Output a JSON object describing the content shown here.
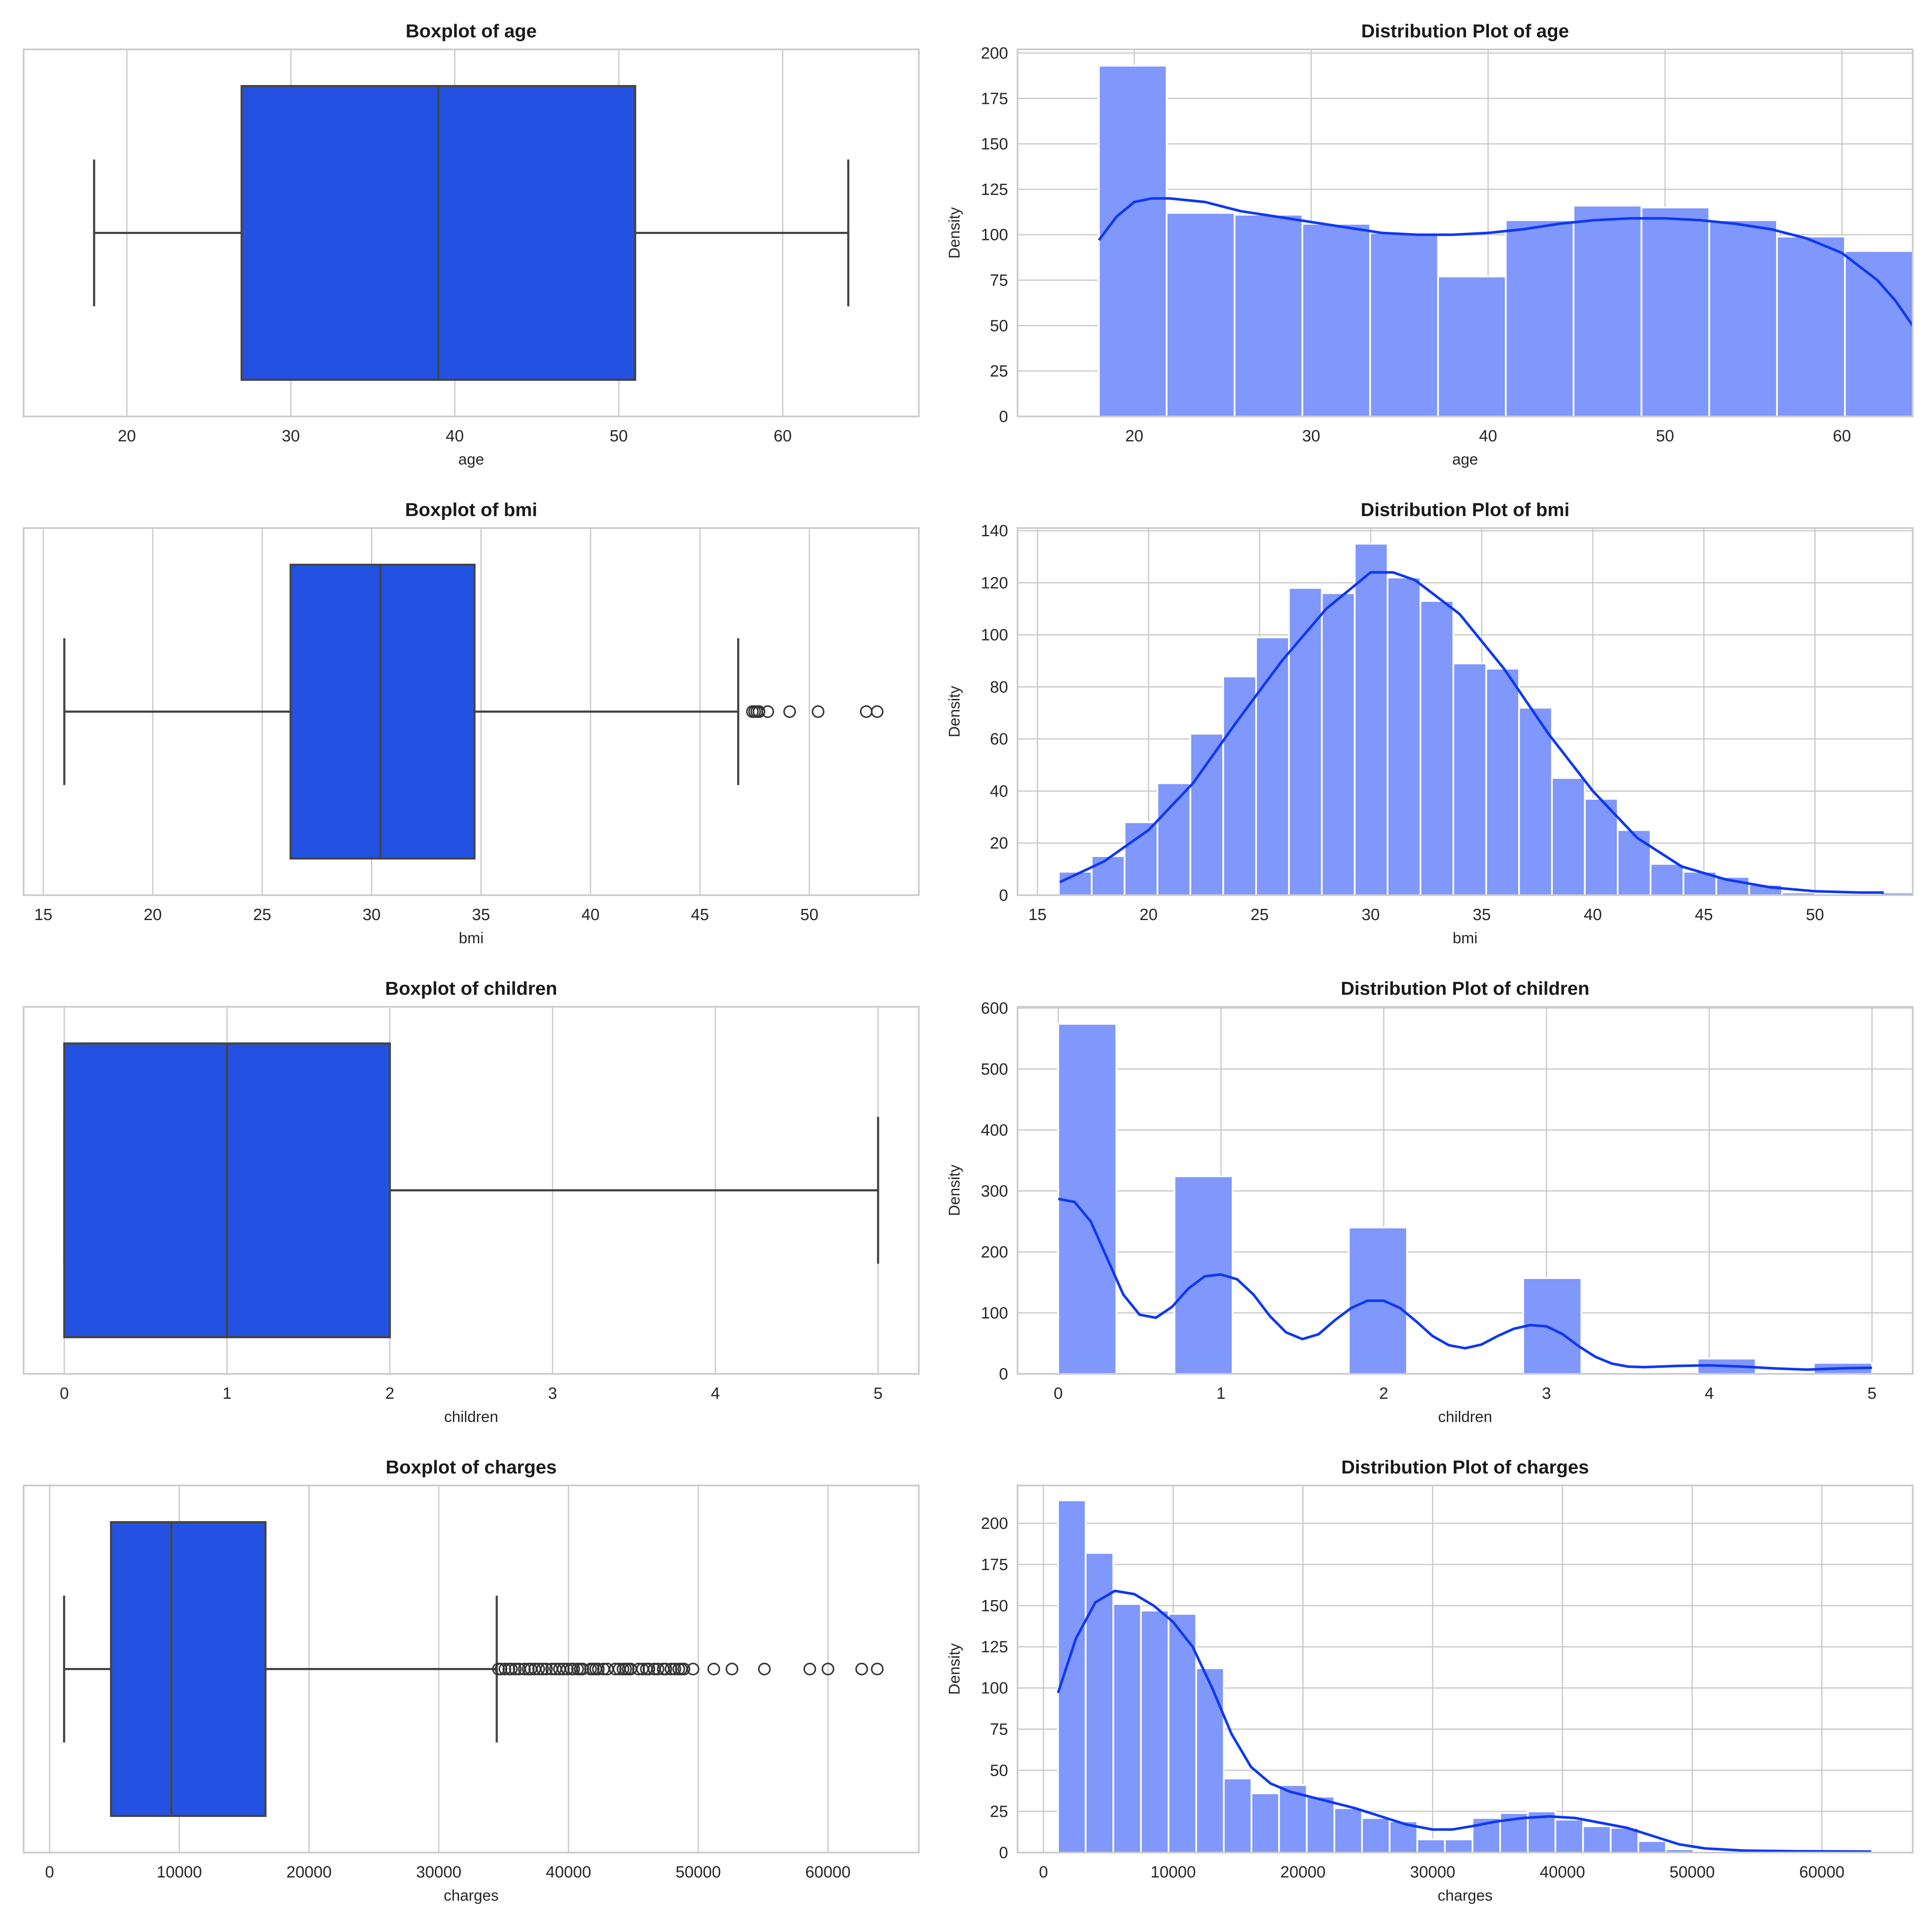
{
  "chart_data": [
    {
      "type": "boxplot",
      "title": "Boxplot of age",
      "xlabel": "age",
      "xlim": [
        13.7,
        68.3
      ],
      "xticks": [
        20,
        30,
        40,
        50,
        60
      ],
      "min": 18,
      "q1": 27,
      "median": 39,
      "q3": 51,
      "max": 64,
      "outliers": [],
      "grid": true,
      "box_color": "#2352e2"
    },
    {
      "type": "histogram",
      "title": "Distribution Plot of age",
      "xlabel": "age",
      "ylabel": "Density",
      "xlim": [
        13.4,
        64.0
      ],
      "ylim": [
        0,
        202
      ],
      "xticks": [
        20,
        30,
        40,
        50,
        60
      ],
      "yticks": [
        0,
        25,
        50,
        75,
        100,
        125,
        150,
        175,
        200
      ],
      "bin_edges": [
        18,
        21.83,
        25.67,
        29.5,
        33.33,
        37.17,
        41,
        44.83,
        48.67,
        52.5,
        56.33,
        60.17,
        64
      ],
      "counts": [
        193,
        112,
        111,
        106,
        101,
        77,
        108,
        116,
        115,
        108,
        99,
        91
      ],
      "kde": [
        [
          18,
          97
        ],
        [
          19,
          110
        ],
        [
          20,
          118
        ],
        [
          21,
          120
        ],
        [
          22,
          120
        ],
        [
          24,
          118
        ],
        [
          26,
          113
        ],
        [
          28,
          110
        ],
        [
          30,
          107
        ],
        [
          32,
          104
        ],
        [
          34,
          101
        ],
        [
          36,
          100
        ],
        [
          38,
          100
        ],
        [
          40,
          101
        ],
        [
          42,
          103
        ],
        [
          44,
          106
        ],
        [
          46,
          108
        ],
        [
          48,
          109
        ],
        [
          50,
          109
        ],
        [
          52,
          108
        ],
        [
          54,
          106
        ],
        [
          56,
          103
        ],
        [
          58,
          98
        ],
        [
          60,
          90
        ],
        [
          62,
          75
        ],
        [
          63,
          64
        ],
        [
          64,
          50
        ]
      ],
      "grid": true,
      "bar_color": "#8097fb",
      "kde_color": "#1038f0"
    },
    {
      "type": "boxplot",
      "title": "Boxplot of bmi",
      "xlabel": "bmi",
      "xlim": [
        14.1,
        55.0
      ],
      "xticks": [
        15,
        20,
        25,
        30,
        35,
        40,
        45,
        50
      ],
      "min": 15.96,
      "q1": 26.3,
      "median": 30.4,
      "q3": 34.7,
      "max": 46.75,
      "outliers": [
        47.4,
        47.5,
        47.6,
        47.7,
        47.7,
        48.1,
        49.1,
        50.4,
        52.6,
        53.1
      ],
      "grid": true,
      "box_color": "#2352e2"
    },
    {
      "type": "histogram",
      "title": "Distribution Plot of bmi",
      "xlabel": "bmi",
      "ylabel": "Density",
      "xlim": [
        14.1,
        54.4
      ],
      "ylim": [
        0,
        141
      ],
      "xticks": [
        15,
        20,
        25,
        30,
        35,
        40,
        45,
        50
      ],
      "yticks": [
        0,
        20,
        40,
        60,
        80,
        100,
        120,
        140
      ],
      "bin_edges": [
        15.96,
        17.44,
        18.92,
        20.4,
        21.88,
        23.36,
        24.84,
        26.32,
        27.8,
        29.28,
        30.76,
        32.24,
        33.72,
        35.2,
        36.68,
        38.16,
        39.64,
        41.12,
        42.6,
        44.08,
        45.56,
        47.04,
        48.52,
        50.0,
        51.48,
        52.96,
        54.44
      ],
      "counts": [
        9,
        15,
        28,
        43,
        62,
        84,
        99,
        118,
        116,
        135,
        122,
        113,
        89,
        87,
        72,
        45,
        37,
        25,
        12,
        9,
        7,
        4,
        1,
        0,
        0,
        1
      ],
      "kde": [
        [
          16,
          5
        ],
        [
          18,
          13
        ],
        [
          20,
          25
        ],
        [
          22,
          43
        ],
        [
          24,
          67
        ],
        [
          26,
          90
        ],
        [
          28,
          110
        ],
        [
          30,
          124
        ],
        [
          31,
          124
        ],
        [
          32,
          121
        ],
        [
          34,
          108
        ],
        [
          36,
          87
        ],
        [
          38,
          62
        ],
        [
          40,
          40
        ],
        [
          42,
          22
        ],
        [
          44,
          11
        ],
        [
          46,
          6
        ],
        [
          48,
          3
        ],
        [
          50,
          1.5
        ],
        [
          52,
          1
        ],
        [
          53.1,
          1
        ]
      ],
      "grid": true,
      "bar_color": "#8097fb",
      "kde_color": "#1038f0"
    },
    {
      "type": "boxplot",
      "title": "Boxplot of children",
      "xlabel": "children",
      "xlim": [
        -0.25,
        5.25
      ],
      "xticks": [
        0,
        1,
        2,
        3,
        4,
        5
      ],
      "min": 0,
      "q1": 0,
      "median": 1,
      "q3": 2,
      "max": 5,
      "outliers": [],
      "grid": true,
      "box_color": "#2352e2"
    },
    {
      "type": "histogram",
      "title": "Distribution Plot of children",
      "xlabel": "children",
      "ylabel": "Density",
      "xlim": [
        -0.25,
        5.25
      ],
      "ylim": [
        0,
        602
      ],
      "xticks": [
        0,
        1,
        2,
        3,
        4,
        5
      ],
      "yticks": [
        0,
        100,
        200,
        300,
        400,
        500,
        600
      ],
      "bin_edges": [
        0,
        0.3571,
        0.7143,
        1.0714,
        1.4286,
        1.7857,
        2.1429,
        2.5,
        2.8571,
        3.2143,
        3.5714,
        3.9286,
        4.2857,
        4.6429,
        5.0
      ],
      "counts": [
        574,
        0,
        324,
        0,
        0,
        240,
        0,
        0,
        157,
        0,
        0,
        25,
        0,
        18
      ],
      "kde": [
        [
          0,
          287
        ],
        [
          0.1,
          282
        ],
        [
          0.2,
          250
        ],
        [
          0.3,
          190
        ],
        [
          0.4,
          130
        ],
        [
          0.5,
          97
        ],
        [
          0.6,
          92
        ],
        [
          0.7,
          110
        ],
        [
          0.8,
          140
        ],
        [
          0.9,
          160
        ],
        [
          1.0,
          163
        ],
        [
          1.1,
          155
        ],
        [
          1.2,
          130
        ],
        [
          1.3,
          95
        ],
        [
          1.4,
          68
        ],
        [
          1.5,
          57
        ],
        [
          1.6,
          65
        ],
        [
          1.7,
          88
        ],
        [
          1.8,
          108
        ],
        [
          1.9,
          120
        ],
        [
          2.0,
          120
        ],
        [
          2.1,
          108
        ],
        [
          2.2,
          86
        ],
        [
          2.3,
          62
        ],
        [
          2.4,
          47
        ],
        [
          2.5,
          42
        ],
        [
          2.6,
          48
        ],
        [
          2.7,
          62
        ],
        [
          2.8,
          74
        ],
        [
          2.9,
          80
        ],
        [
          3.0,
          78
        ],
        [
          3.1,
          65
        ],
        [
          3.2,
          45
        ],
        [
          3.3,
          28
        ],
        [
          3.4,
          17
        ],
        [
          3.5,
          12
        ],
        [
          3.6,
          11
        ],
        [
          3.8,
          13
        ],
        [
          4.0,
          14
        ],
        [
          4.2,
          12
        ],
        [
          4.4,
          9
        ],
        [
          4.6,
          7
        ],
        [
          4.8,
          9
        ],
        [
          5.0,
          10
        ]
      ],
      "grid": true,
      "bar_color": "#8097fb",
      "kde_color": "#1038f0"
    },
    {
      "type": "boxplot",
      "title": "Boxplot of charges",
      "xlabel": "charges",
      "xlim": [
        -2000,
        67000
      ],
      "xticks": [
        0,
        10000,
        20000,
        30000,
        40000,
        50000,
        60000
      ],
      "xticklabels": [
        "0",
        "10000",
        "20000",
        "30000",
        "40000",
        "50000",
        "60000"
      ],
      "min": 1122,
      "q1": 4740,
      "median": 9382,
      "q3": 16640,
      "max": 34470,
      "outliers": [
        34600,
        34800,
        35100,
        35400,
        35600,
        35900,
        36200,
        36600,
        36900,
        37100,
        37400,
        37700,
        38000,
        38300,
        38700,
        39000,
        39300,
        39600,
        39900,
        40200,
        40400,
        40700,
        40900,
        41100,
        41700,
        41900,
        42100,
        42300,
        42700,
        43000,
        43600,
        43900,
        44200,
        44400,
        44600,
        44800,
        45400,
        45700,
        46000,
        46200,
        46600,
        46900,
        47300,
        47500,
        47900,
        48200,
        48500,
        48700,
        48900,
        49600,
        51200,
        52600,
        55100,
        58600,
        60000,
        62600,
        63800
      ],
      "grid": true,
      "box_color": "#2352e2"
    },
    {
      "type": "histogram",
      "title": "Distribution Plot of charges",
      "xlabel": "charges",
      "ylabel": "Density",
      "xlim": [
        -2000,
        67000
      ],
      "ylim": [
        0,
        223
      ],
      "xticks": [
        0,
        10000,
        20000,
        30000,
        40000,
        50000,
        60000
      ],
      "xticklabels": [
        "0",
        "10000",
        "20000",
        "30000",
        "40000",
        "50000",
        "60000"
      ],
      "yticks": [
        0,
        25,
        50,
        75,
        100,
        125,
        150,
        175,
        200
      ],
      "bin_edges": [
        1122,
        3252,
        5382,
        7512,
        9642,
        11772,
        13902,
        16032,
        18162,
        20292,
        22422,
        24552,
        26682,
        28812,
        30942,
        33072,
        35202,
        37332,
        39462,
        41592,
        43722,
        45852,
        47982,
        50112,
        52242,
        54372,
        56502,
        58632,
        60762,
        62892,
        65022
      ],
      "counts": [
        214,
        182,
        151,
        147,
        145,
        112,
        45,
        36,
        41,
        34,
        27,
        21,
        19,
        8,
        8,
        21,
        24,
        25,
        20,
        16,
        15,
        7,
        2,
        1,
        1,
        0,
        1,
        0,
        1,
        1
      ],
      "kde": [
        [
          1122,
          97
        ],
        [
          2500,
          130
        ],
        [
          4000,
          152
        ],
        [
          5500,
          159
        ],
        [
          7000,
          157
        ],
        [
          8500,
          150
        ],
        [
          10000,
          140
        ],
        [
          11500,
          125
        ],
        [
          13000,
          100
        ],
        [
          14500,
          72
        ],
        [
          16000,
          52
        ],
        [
          17500,
          42
        ],
        [
          19000,
          37
        ],
        [
          20500,
          34
        ],
        [
          22000,
          31
        ],
        [
          24000,
          27
        ],
        [
          26000,
          22
        ],
        [
          28000,
          17
        ],
        [
          30000,
          14
        ],
        [
          31500,
          14
        ],
        [
          33000,
          16
        ],
        [
          35000,
          19
        ],
        [
          37000,
          21
        ],
        [
          39000,
          22
        ],
        [
          41000,
          21
        ],
        [
          43000,
          18
        ],
        [
          45000,
          15
        ],
        [
          47000,
          10
        ],
        [
          49000,
          5
        ],
        [
          51000,
          2.5
        ],
        [
          54000,
          1.2
        ],
        [
          58000,
          0.8
        ],
        [
          63800,
          0.6
        ]
      ],
      "grid": true,
      "bar_color": "#8097fb",
      "kde_color": "#1038f0"
    }
  ]
}
